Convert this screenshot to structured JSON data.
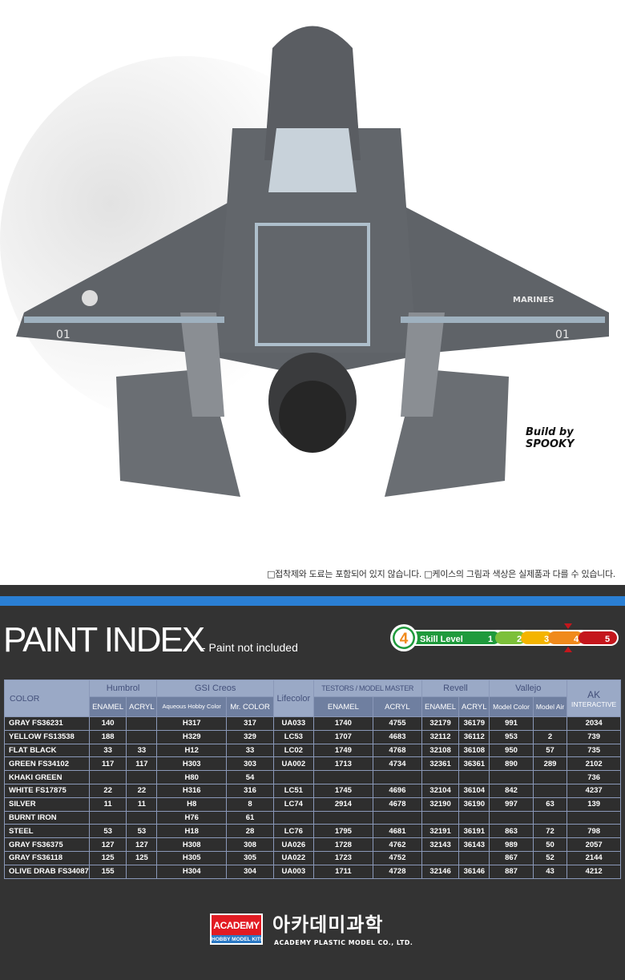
{
  "photo": {
    "credit": "Build by SPOOKY",
    "wing_marking": "MARINES",
    "tail_number": "01"
  },
  "notice": "□접착제와 도료는 포함되어 있지 않습니다. □케이스의 그림과 색상은 실제품과 다를 수 있습니다.",
  "header": {
    "title": "PAINT INDEX",
    "subtitle": "- Paint not included"
  },
  "skill": {
    "label": "Skill Level",
    "value": "4",
    "levels": [
      "1",
      "2",
      "3",
      "4",
      "5"
    ],
    "selected": 4,
    "colors": [
      "#1f9a3c",
      "#7cc03a",
      "#f4b400",
      "#f08a1c",
      "#c4161c"
    ]
  },
  "table": {
    "color_header": "COLOR",
    "brands": [
      {
        "name": "Humbrol",
        "subs": [
          "ENAMEL",
          "ACRYL"
        ]
      },
      {
        "name": "GSI Creos",
        "subs": [
          "Aqueous Hobby Color",
          "Mr. COLOR"
        ]
      },
      {
        "name": "Lifecolor",
        "subs": []
      },
      {
        "name": "TESTORS / MODEL MASTER",
        "subs": [
          "ENAMEL",
          "ACRYL"
        ]
      },
      {
        "name": "Revell",
        "subs": [
          "ENAMEL",
          "ACRYL"
        ]
      },
      {
        "name": "Vallejo",
        "subs": [
          "Model Color",
          "Model Air"
        ]
      },
      {
        "name": "AK",
        "name2": "INTERACTIVE",
        "subs": []
      }
    ],
    "rows": [
      [
        "GRAY FS36231",
        "140",
        "",
        "H317",
        "317",
        "UA033",
        "1740",
        "4755",
        "32179",
        "36179",
        "991",
        "",
        "2034"
      ],
      [
        "YELLOW FS13538",
        "188",
        "",
        "H329",
        "329",
        "LC53",
        "1707",
        "4683",
        "32112",
        "36112",
        "953",
        "2",
        "739"
      ],
      [
        "FLAT BLACK",
        "33",
        "33",
        "H12",
        "33",
        "LC02",
        "1749",
        "4768",
        "32108",
        "36108",
        "950",
        "57",
        "735"
      ],
      [
        "GREEN FS34102",
        "117",
        "117",
        "H303",
        "303",
        "UA002",
        "1713",
        "4734",
        "32361",
        "36361",
        "890",
        "289",
        "2102"
      ],
      [
        "KHAKI GREEN",
        "",
        "",
        "H80",
        "54",
        "",
        "",
        "",
        "",
        "",
        "",
        "",
        "736"
      ],
      [
        "WHITE FS17875",
        "22",
        "22",
        "H316",
        "316",
        "LC51",
        "1745",
        "4696",
        "32104",
        "36104",
        "842",
        "",
        "4237"
      ],
      [
        "SILVER",
        "11",
        "11",
        "H8",
        "8",
        "LC74",
        "2914",
        "4678",
        "32190",
        "36190",
        "997",
        "63",
        "139"
      ],
      [
        "BURNT IRON",
        "",
        "",
        "H76",
        "61",
        "",
        "",
        "",
        "",
        "",
        "",
        "",
        ""
      ],
      [
        "STEEL",
        "53",
        "53",
        "H18",
        "28",
        "LC76",
        "1795",
        "4681",
        "32191",
        "36191",
        "863",
        "72",
        "798"
      ],
      [
        "GRAY FS36375",
        "127",
        "127",
        "H308",
        "308",
        "UA026",
        "1728",
        "4762",
        "32143",
        "36143",
        "989",
        "50",
        "2057"
      ],
      [
        "GRAY FS36118",
        "125",
        "125",
        "H305",
        "305",
        "UA022",
        "1723",
        "4752",
        "",
        "",
        "867",
        "52",
        "2144"
      ],
      [
        "OLIVE DRAB FS34087",
        "155",
        "",
        "H304",
        "304",
        "UA003",
        "1711",
        "4728",
        "32146",
        "36146",
        "887",
        "43",
        "4212"
      ]
    ]
  },
  "footer": {
    "logo_main": "ACADEMY",
    "logo_sub": "HOBBY MODEL KITS",
    "korean": "아카데미과학",
    "company": "ACADEMY PLASTIC MODEL CO., LTD."
  }
}
